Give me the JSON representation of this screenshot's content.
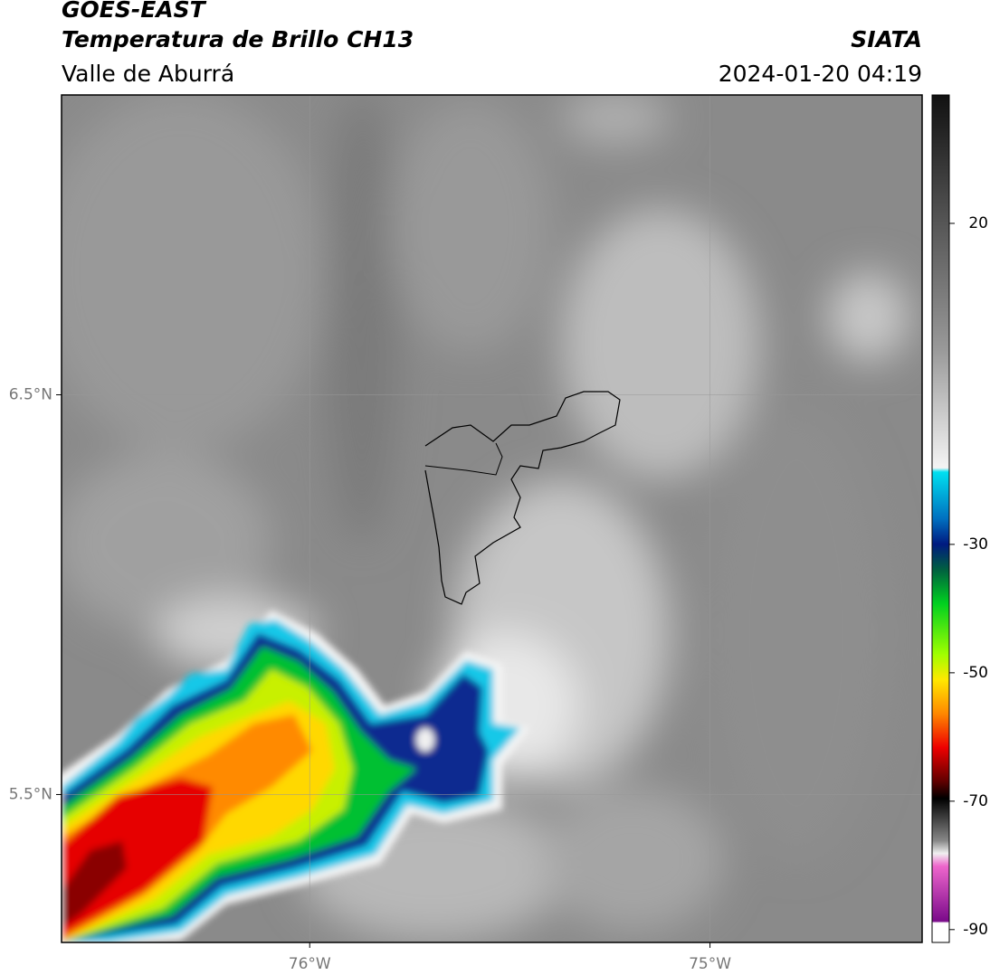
{
  "header": {
    "title": "GOES-EAST",
    "subtitle": "Temperatura de Brillo CH13",
    "region": "Valle de Aburrá",
    "source": "SIATA",
    "datetime": "2024-01-20 04:19"
  },
  "map": {
    "xlim": [
      -76.62,
      -74.47
    ],
    "ylim": [
      5.13,
      7.25
    ],
    "xticks": [
      {
        "value": -76,
        "label": "76°W"
      },
      {
        "value": -75,
        "label": "75°W"
      }
    ],
    "yticks": [
      {
        "value": 6.5,
        "label": "6.5°N"
      },
      {
        "value": 5.5,
        "label": "5.5°N"
      }
    ],
    "grid": true
  },
  "colorbar": {
    "lim": [
      -92,
      40
    ],
    "ticks": [
      20,
      -30,
      -50,
      -70,
      -90
    ]
  }
}
